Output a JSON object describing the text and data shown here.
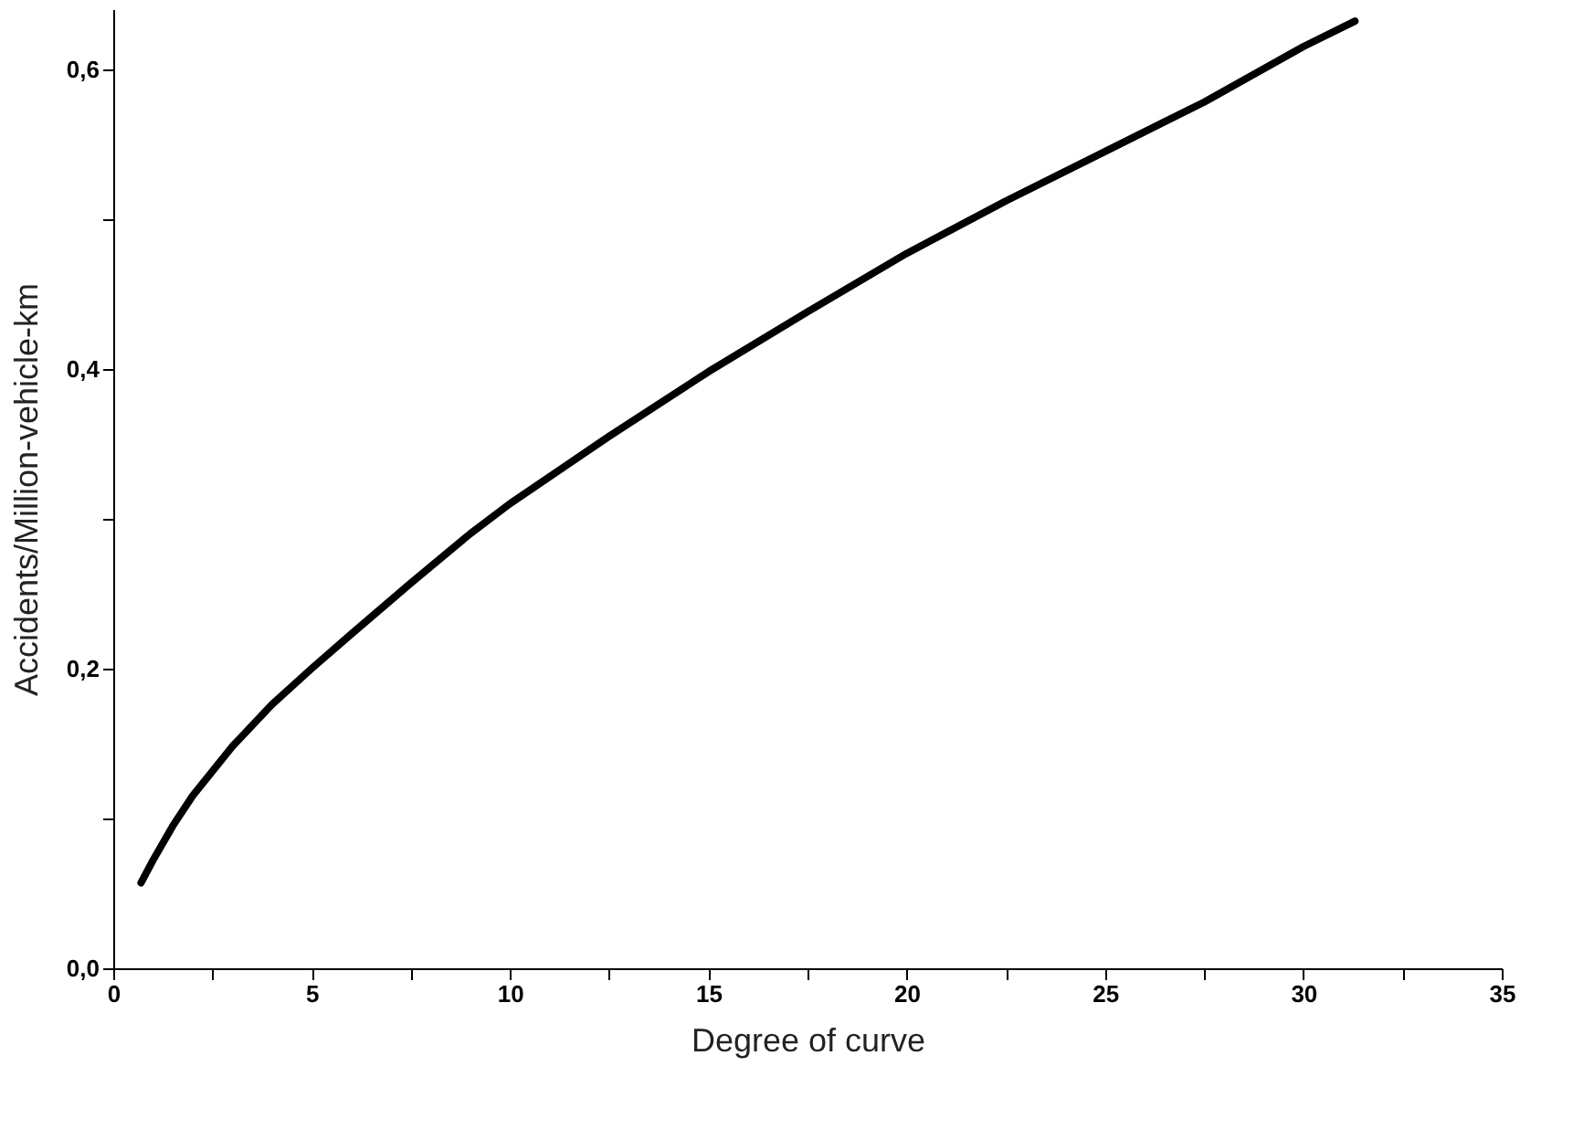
{
  "chart_data": {
    "type": "line",
    "xlabel": "Degree of curve",
    "ylabel": "Accidents/Million-vehicle-km",
    "x": [
      0.7,
      1,
      1.5,
      2,
      3,
      4,
      5,
      6,
      7.5,
      9,
      10,
      12.5,
      15,
      17.5,
      20,
      22.5,
      25,
      27.5,
      30,
      31.3
    ],
    "series": [
      {
        "color": "#000000",
        "values": [
          0.057,
          0.072,
          0.095,
          0.115,
          0.148,
          0.176,
          0.2,
          0.223,
          0.257,
          0.29,
          0.31,
          0.355,
          0.398,
          0.438,
          0.477,
          0.512,
          0.545,
          0.578,
          0.615,
          0.632
        ]
      }
    ],
    "xlim": [
      0,
      35
    ],
    "ylim": [
      0,
      0.64
    ],
    "xticks": [
      0,
      {
        "value": 2.5,
        "label": null
      },
      5,
      {
        "value": 7.5,
        "label": null
      },
      10,
      {
        "value": 12.5,
        "label": null
      },
      15,
      {
        "value": 17.5,
        "label": null
      },
      20,
      {
        "value": 22.5,
        "label": null
      },
      25,
      {
        "value": 27.5,
        "label": null
      },
      30,
      {
        "value": 32.5,
        "label": null
      },
      35
    ],
    "yticks": [
      {
        "value": 0,
        "label": "0,0"
      },
      {
        "value": 0.1,
        "label": null
      },
      {
        "value": 0.2,
        "label": "0,2"
      },
      {
        "value": 0.3,
        "label": null
      },
      {
        "value": 0.4,
        "label": "0,4"
      },
      {
        "value": 0.5,
        "label": null
      },
      {
        "value": 0.6,
        "label": "0,6"
      }
    ],
    "grid": false,
    "marker": "none",
    "line_style": "solid"
  }
}
